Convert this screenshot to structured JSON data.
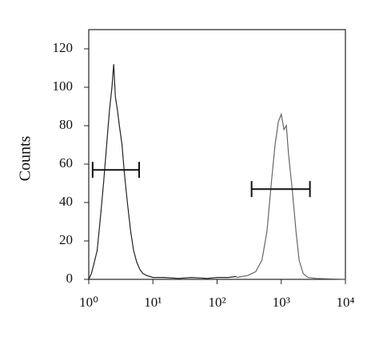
{
  "chart_data": {
    "type": "line",
    "ylabel": "Counts",
    "xscale": "log",
    "xlim": [
      1,
      10000
    ],
    "ylim": [
      0,
      130
    ],
    "xticks": [
      {
        "value": 1,
        "label": "10⁰"
      },
      {
        "value": 10,
        "label": "10¹"
      },
      {
        "value": 100,
        "label": "10²"
      },
      {
        "value": 1000,
        "label": "10³"
      },
      {
        "value": 10000,
        "label": "10⁴"
      }
    ],
    "yticks": [
      0,
      20,
      40,
      60,
      80,
      100,
      120
    ],
    "series": [
      {
        "color": "#222222",
        "x": [
          1.0,
          1.1,
          1.2,
          1.35,
          1.5,
          1.7,
          1.9,
          2.1,
          2.3,
          2.45,
          2.6,
          2.8,
          3.0,
          3.3,
          3.6,
          4.0,
          4.5,
          5.0,
          5.6,
          6.3,
          7.0,
          8,
          10,
          15,
          25,
          40,
          70,
          100,
          150,
          200
        ],
        "values": [
          0,
          3,
          8,
          15,
          30,
          50,
          70,
          88,
          100,
          112,
          95,
          88,
          80,
          70,
          55,
          40,
          25,
          15,
          9,
          5,
          3,
          2,
          1,
          1,
          0.5,
          1,
          0.5,
          1,
          1,
          1.5
        ]
      },
      {
        "color": "#666666",
        "x": [
          200,
          300,
          400,
          500,
          600,
          700,
          800,
          900,
          1000,
          1100,
          1200,
          1300,
          1500,
          1700,
          1900,
          2200,
          2600,
          3500,
          10000
        ],
        "values": [
          1,
          2,
          4,
          10,
          25,
          50,
          70,
          82,
          86,
          78,
          80,
          65,
          45,
          25,
          10,
          3,
          1,
          0.5,
          0
        ]
      }
    ],
    "gates": [
      {
        "x": [
          1.15,
          6.1
        ],
        "y": 57
      },
      {
        "x": [
          345,
          2800
        ],
        "y": 47
      }
    ]
  }
}
